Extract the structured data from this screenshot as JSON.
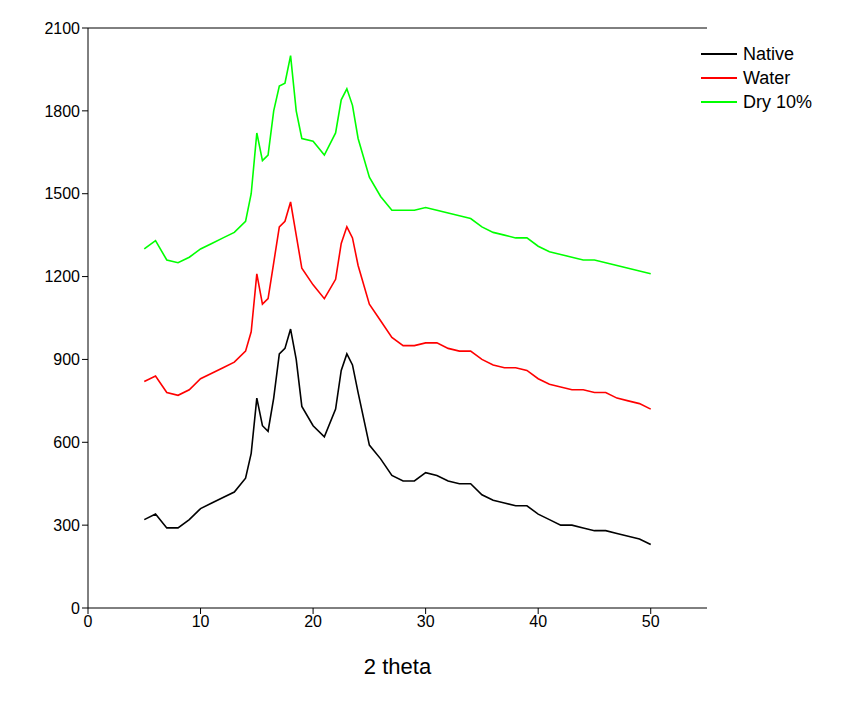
{
  "chart_data": {
    "type": "line",
    "x_label": "2 theta",
    "x": [
      5,
      6,
      7,
      8,
      9,
      10,
      11,
      12,
      13,
      14,
      14.5,
      15,
      15.5,
      16,
      16.5,
      17,
      17.5,
      18,
      18.5,
      19,
      20,
      21,
      22,
      22.5,
      23,
      23.5,
      24,
      25,
      26,
      27,
      28,
      29,
      30,
      31,
      32,
      33,
      34,
      35,
      36,
      37,
      38,
      39,
      40,
      41,
      42,
      43,
      44,
      45,
      46,
      47,
      48,
      49,
      50
    ],
    "series": [
      {
        "name": "Native",
        "color": "#000000",
        "values": [
          320,
          340,
          290,
          290,
          320,
          360,
          380,
          400,
          420,
          470,
          560,
          760,
          660,
          640,
          760,
          920,
          940,
          1010,
          900,
          730,
          660,
          620,
          720,
          860,
          920,
          880,
          780,
          590,
          540,
          480,
          460,
          460,
          490,
          480,
          460,
          450,
          450,
          410,
          390,
          380,
          370,
          370,
          340,
          320,
          300,
          300,
          290,
          280,
          280,
          270,
          260,
          250,
          230
        ]
      },
      {
        "name": "Water",
        "color": "#ff0000",
        "values": [
          820,
          840,
          780,
          770,
          790,
          830,
          850,
          870,
          890,
          930,
          1000,
          1210,
          1100,
          1120,
          1250,
          1380,
          1400,
          1470,
          1350,
          1230,
          1170,
          1120,
          1190,
          1320,
          1380,
          1340,
          1240,
          1100,
          1040,
          980,
          950,
          950,
          960,
          960,
          940,
          930,
          930,
          900,
          880,
          870,
          870,
          860,
          830,
          810,
          800,
          790,
          790,
          780,
          780,
          760,
          750,
          740,
          720
        ]
      },
      {
        "name": "Dry 10%",
        "color": "#00ff00",
        "values": [
          1300,
          1330,
          1260,
          1250,
          1270,
          1300,
          1320,
          1340,
          1360,
          1400,
          1500,
          1720,
          1620,
          1640,
          1800,
          1890,
          1900,
          2000,
          1800,
          1700,
          1690,
          1640,
          1720,
          1840,
          1880,
          1820,
          1700,
          1560,
          1490,
          1440,
          1440,
          1440,
          1450,
          1440,
          1430,
          1420,
          1410,
          1380,
          1360,
          1350,
          1340,
          1340,
          1310,
          1290,
          1280,
          1270,
          1260,
          1260,
          1250,
          1240,
          1230,
          1220,
          1210
        ]
      }
    ],
    "xlim": [
      0,
      55
    ],
    "xticks": [
      0,
      10,
      20,
      30,
      40,
      50
    ],
    "ylim": [
      0,
      2100
    ],
    "yticks": [
      0,
      300,
      600,
      900,
      1200,
      1500,
      1800,
      2100
    ],
    "grid": false,
    "legend": "upper right"
  }
}
